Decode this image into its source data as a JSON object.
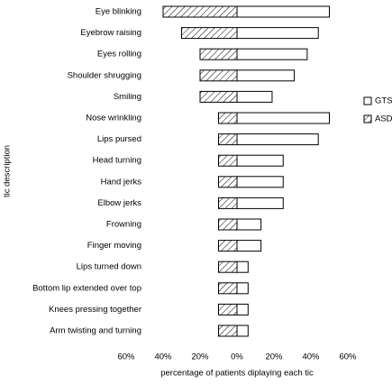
{
  "chart_data": {
    "type": "diverging-bar",
    "x_label": "percentage of patients diplaying each tic",
    "y_label": "tic description",
    "categories": [
      "Eye blinking",
      "Eyebrow raising",
      "Eyes rolling",
      "Shoulder shrugging",
      "Smiling",
      "Nose wrinkling",
      "Lips pursed",
      "Head turning",
      "Hand jerks",
      "Elbow jerks",
      "Frowning",
      "Finger moving",
      "Lips turned down",
      "Bottom lip extended over top",
      "Knees pressing together",
      "Arm twisting and turning"
    ],
    "series": [
      {
        "name": "GTS",
        "color": "#ffffff",
        "hatch": false,
        "values": [
          50,
          44,
          38,
          31,
          19,
          50,
          44,
          25,
          25,
          25,
          13,
          13,
          6,
          6,
          6,
          6
        ]
      },
      {
        "name": "ASD",
        "color": "#ffffff",
        "hatch": true,
        "values": [
          -40,
          -30,
          -20,
          -20,
          -20,
          -10,
          -10,
          -10,
          -10,
          -10,
          -10,
          -10,
          -10,
          -10,
          -10,
          -10
        ]
      }
    ],
    "xlim": [
      -60,
      60
    ],
    "xticks": [
      {
        "value": -60,
        "label": "60%"
      },
      {
        "value": -40,
        "label": "40%"
      },
      {
        "value": -20,
        "label": "20%"
      },
      {
        "value": 0,
        "label": "0%"
      },
      {
        "value": 20,
        "label": "20%"
      },
      {
        "value": 40,
        "label": "40%"
      },
      {
        "value": 60,
        "label": "60%"
      }
    ],
    "legend": "right"
  }
}
